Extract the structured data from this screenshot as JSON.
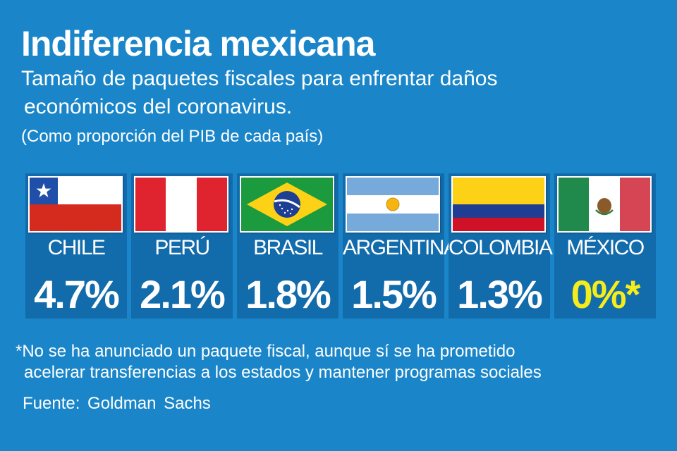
{
  "title": "Indiferencia mexicana",
  "subtitle_lines": [
    "Tamaño de paquetes fiscales para enfrentar daños",
    "económicos del coronavirus."
  ],
  "unit_note": "(Como proporción del PIB de cada país)",
  "chart_data": {
    "type": "table",
    "categories": [
      "CHILE",
      "PERÚ",
      "BRASIL",
      "ARGENTINA",
      "COLOMBIA",
      "MÉXICO"
    ],
    "values": [
      4.7,
      2.1,
      1.8,
      1.5,
      1.3,
      0
    ],
    "value_labels": [
      "4.7%",
      "2.1%",
      "1.8%",
      "1.5%",
      "1.3%",
      "0%*"
    ],
    "flags": [
      "chile-flag-icon",
      "peru-flag-icon",
      "brazil-flag-icon",
      "argentina-flag-icon",
      "colombia-flag-icon",
      "mexico-flag-icon"
    ],
    "highlight_index": 5
  },
  "footnote_lines": [
    "*No se ha anunciado un paquete fiscal, aunque sí se ha prometido",
    "acelerar transferencias a los estados y mantener programas sociales"
  ],
  "source": "Fuente:  Goldman Sachs",
  "colors": {
    "background": "#1a86c9",
    "card": "#126bab",
    "text": "#ffffff",
    "highlight": "#f5ec1c"
  }
}
